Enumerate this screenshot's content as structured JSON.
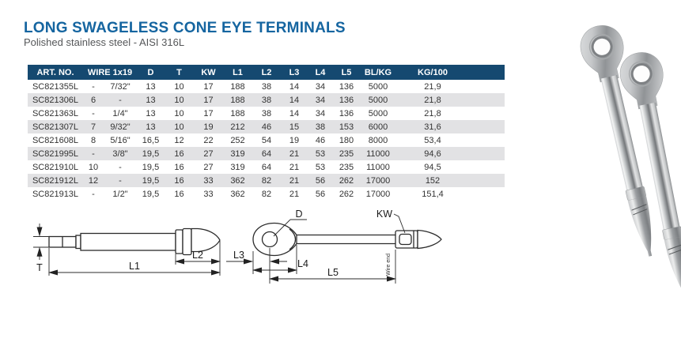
{
  "page": {
    "title": "LONG SWAGELESS CONE EYE TERMINALS",
    "subtitle": "Polished stainless steel - AISI 316L"
  },
  "colors": {
    "title_blue": "#1565a0",
    "table_header_navy": "#154970",
    "row_alt_gray": "#e2e2e4",
    "drawing_line": "#222222"
  },
  "table": {
    "columns": [
      {
        "label": "ART. NO.",
        "span": 1
      },
      {
        "label": "WIRE 1x19",
        "span": 2
      },
      {
        "label": "D",
        "span": 1
      },
      {
        "label": "T",
        "span": 1
      },
      {
        "label": "KW",
        "span": 1
      },
      {
        "label": "L1",
        "span": 1
      },
      {
        "label": "L2",
        "span": 1
      },
      {
        "label": "L3",
        "span": 1
      },
      {
        "label": "L4",
        "span": 1
      },
      {
        "label": "L5",
        "span": 1
      },
      {
        "label": "BL/KG",
        "span": 1
      },
      {
        "label": "KG/100",
        "span": 1
      }
    ],
    "rows": [
      [
        "SC821355L",
        "-",
        "7/32\"",
        "13",
        "10",
        "17",
        "188",
        "38",
        "14",
        "34",
        "136",
        "5000",
        "21,9"
      ],
      [
        "SC821306L",
        "6",
        "-",
        "13",
        "10",
        "17",
        "188",
        "38",
        "14",
        "34",
        "136",
        "5000",
        "21,8"
      ],
      [
        "SC821363L",
        "-",
        "1/4\"",
        "13",
        "10",
        "17",
        "188",
        "38",
        "14",
        "34",
        "136",
        "5000",
        "21,8"
      ],
      [
        "SC821307L",
        "7",
        "9/32\"",
        "13",
        "10",
        "19",
        "212",
        "46",
        "15",
        "38",
        "153",
        "6000",
        "31,6"
      ],
      [
        "SC821608L",
        "8",
        "5/16\"",
        "16,5",
        "12",
        "22",
        "252",
        "54",
        "19",
        "46",
        "180",
        "8000",
        "53,4"
      ],
      [
        "SC821995L",
        "-",
        "3/8\"",
        "19,5",
        "16",
        "27",
        "319",
        "64",
        "21",
        "53",
        "235",
        "11000",
        "94,6"
      ],
      [
        "SC821910L",
        "10",
        "-",
        "19,5",
        "16",
        "27",
        "319",
        "64",
        "21",
        "53",
        "235",
        "11000",
        "94,5"
      ],
      [
        "SC821912L",
        "12",
        "-",
        "19,5",
        "16",
        "33",
        "362",
        "82",
        "21",
        "56",
        "262",
        "17000",
        "152"
      ],
      [
        "SC821913L",
        "-",
        "1/2\"",
        "19,5",
        "16",
        "33",
        "362",
        "82",
        "21",
        "56",
        "262",
        "17000",
        "151,4"
      ]
    ]
  },
  "diagrams": {
    "stud_view": {
      "t": "T",
      "l1": "L1",
      "l2": "L2"
    },
    "eye_view": {
      "d": "D",
      "kw": "KW",
      "l3": "L3",
      "l4": "L4",
      "l5": "L5",
      "wire_end": "Wire end"
    }
  }
}
